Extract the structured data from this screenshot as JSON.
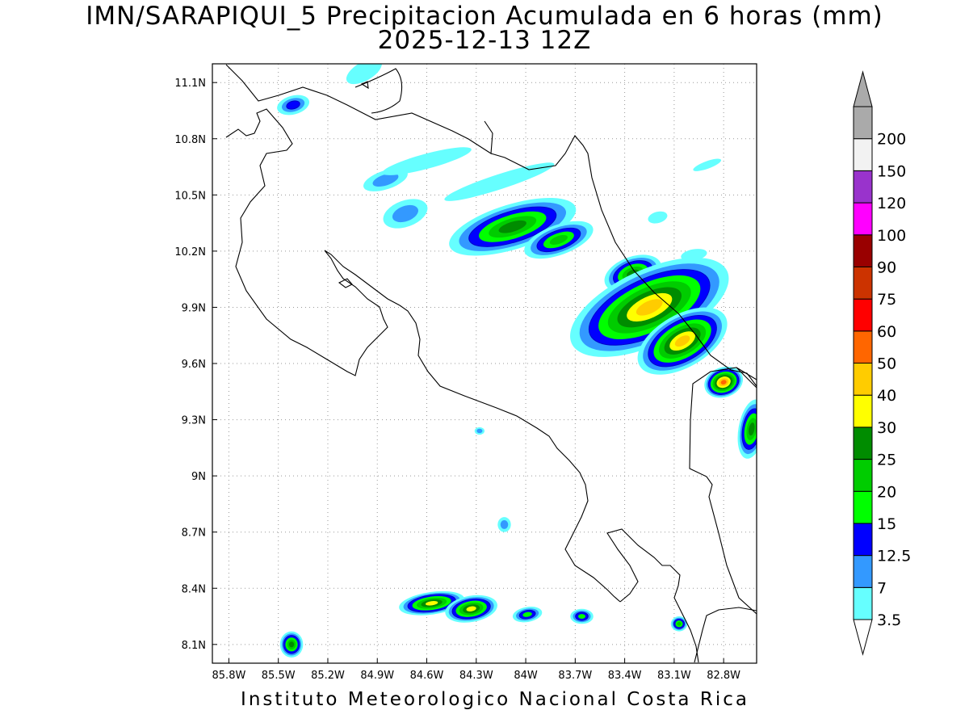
{
  "title": {
    "line1": "IMN/SARAPIQUI_5 Precipitacion Acumulada en 6 horas (mm)",
    "line2": "2025-12-13 12Z"
  },
  "credit": "Instituto Meteorologico Nacional Costa Rica",
  "map": {
    "lon_range": [
      -85.9,
      -82.6
    ],
    "lat_range": [
      8.0,
      11.2
    ],
    "lon_ticks": [
      {
        "value": -85.8,
        "label": "85.8W"
      },
      {
        "value": -85.5,
        "label": "85.5W"
      },
      {
        "value": -85.2,
        "label": "85.2W"
      },
      {
        "value": -84.9,
        "label": "84.9W"
      },
      {
        "value": -84.6,
        "label": "84.6W"
      },
      {
        "value": -84.3,
        "label": "84.3W"
      },
      {
        "value": -84.0,
        "label": "84W"
      },
      {
        "value": -83.7,
        "label": "83.7W"
      },
      {
        "value": -83.4,
        "label": "83.4W"
      },
      {
        "value": -83.1,
        "label": "83.1W"
      },
      {
        "value": -82.8,
        "label": "82.8W"
      }
    ],
    "lat_ticks": [
      {
        "value": 11.1,
        "label": "11.1N"
      },
      {
        "value": 10.8,
        "label": "10.8N"
      },
      {
        "value": 10.5,
        "label": "10.5N"
      },
      {
        "value": 10.2,
        "label": "10.2N"
      },
      {
        "value": 9.9,
        "label": "9.9N"
      },
      {
        "value": 9.6,
        "label": "9.6N"
      },
      {
        "value": 9.3,
        "label": "9.3N"
      },
      {
        "value": 9.0,
        "label": "9N"
      },
      {
        "value": 8.7,
        "label": "8.7N"
      },
      {
        "value": 8.4,
        "label": "8.4N"
      },
      {
        "value": 8.1,
        "label": "8.1N"
      }
    ],
    "grid": "dotted",
    "projection": "lat-lon"
  },
  "colorbar": {
    "orientation": "vertical",
    "placement": "right",
    "levels": [
      {
        "label": "3.5",
        "color": "#66ffff"
      },
      {
        "label": "7",
        "color": "#3399ff"
      },
      {
        "label": "12.5",
        "color": "#0000ff"
      },
      {
        "label": "15",
        "color": "#00ff00"
      },
      {
        "label": "20",
        "color": "#00cc00"
      },
      {
        "label": "25",
        "color": "#008c00"
      },
      {
        "label": "30",
        "color": "#ffff00"
      },
      {
        "label": "40",
        "color": "#ffcc00"
      },
      {
        "label": "50",
        "color": "#ff6600"
      },
      {
        "label": "60",
        "color": "#ff0000"
      },
      {
        "label": "75",
        "color": "#cc3300"
      },
      {
        "label": "90",
        "color": "#990000"
      },
      {
        "label": "100",
        "color": "#ff00ff"
      },
      {
        "label": "120",
        "color": "#9933cc"
      },
      {
        "label": "150",
        "color": "#f2f2f2"
      },
      {
        "label": "200",
        "color": "#aaaaaa"
      }
    ],
    "bottom_extension_color": "#ffffff",
    "top_extension_color": "#aaaaaa"
  },
  "precipitation_cells": [
    {
      "lon": -84.85,
      "lat": 10.58,
      "rx": 0.14,
      "ry": 0.05,
      "rot": -18,
      "max_mm": 7
    },
    {
      "lon": -84.6,
      "lat": 10.68,
      "rx": 0.28,
      "ry": 0.04,
      "rot": -15,
      "max_mm": 3.5
    },
    {
      "lon": -84.16,
      "lat": 10.57,
      "rx": 0.35,
      "ry": 0.04,
      "rot": -18,
      "max_mm": 3.5
    },
    {
      "lon": -85.41,
      "lat": 10.98,
      "rx": 0.1,
      "ry": 0.05,
      "rot": -15,
      "max_mm": 12.5
    },
    {
      "lon": -84.98,
      "lat": 11.16,
      "rx": 0.12,
      "ry": 0.05,
      "rot": -30,
      "max_mm": 3.5
    },
    {
      "lon": -84.73,
      "lat": 10.4,
      "rx": 0.14,
      "ry": 0.07,
      "rot": -20,
      "max_mm": 7
    },
    {
      "lon": -84.08,
      "lat": 10.33,
      "rx": 0.4,
      "ry": 0.12,
      "rot": -17,
      "max_mm": 25
    },
    {
      "lon": -83.8,
      "lat": 10.26,
      "rx": 0.22,
      "ry": 0.08,
      "rot": -20,
      "max_mm": 20
    },
    {
      "lon": -83.35,
      "lat": 10.08,
      "rx": 0.18,
      "ry": 0.09,
      "rot": -20,
      "max_mm": 25
    },
    {
      "lon": -83.25,
      "lat": 9.9,
      "rx": 0.52,
      "ry": 0.2,
      "rot": -25,
      "max_mm": 40
    },
    {
      "lon": -83.05,
      "lat": 9.72,
      "rx": 0.3,
      "ry": 0.14,
      "rot": -30,
      "max_mm": 40
    },
    {
      "lon": -82.8,
      "lat": 9.5,
      "rx": 0.12,
      "ry": 0.08,
      "rot": -20,
      "max_mm": 50
    },
    {
      "lon": -82.63,
      "lat": 9.25,
      "rx": 0.08,
      "ry": 0.16,
      "rot": 10,
      "max_mm": 25
    },
    {
      "lon": -82.98,
      "lat": 10.18,
      "rx": 0.08,
      "ry": 0.03,
      "rot": -10,
      "max_mm": 3.5
    },
    {
      "lon": -83.2,
      "lat": 10.38,
      "rx": 0.06,
      "ry": 0.03,
      "rot": -15,
      "max_mm": 3.5
    },
    {
      "lon": -82.9,
      "lat": 10.66,
      "rx": 0.09,
      "ry": 0.02,
      "rot": -20,
      "max_mm": 3.5
    },
    {
      "lon": -84.57,
      "lat": 8.32,
      "rx": 0.2,
      "ry": 0.06,
      "rot": -8,
      "max_mm": 30
    },
    {
      "lon": -84.33,
      "lat": 8.29,
      "rx": 0.16,
      "ry": 0.07,
      "rot": -10,
      "max_mm": 30
    },
    {
      "lon": -83.99,
      "lat": 8.26,
      "rx": 0.09,
      "ry": 0.04,
      "rot": -10,
      "max_mm": 15
    },
    {
      "lon": -83.66,
      "lat": 8.25,
      "rx": 0.07,
      "ry": 0.04,
      "rot": 0,
      "max_mm": 15
    },
    {
      "lon": -83.07,
      "lat": 8.21,
      "rx": 0.05,
      "ry": 0.04,
      "rot": 0,
      "max_mm": 20
    },
    {
      "lon": -85.42,
      "lat": 8.1,
      "rx": 0.07,
      "ry": 0.07,
      "rot": 0,
      "max_mm": 25
    },
    {
      "lon": -84.13,
      "lat": 8.74,
      "rx": 0.04,
      "ry": 0.04,
      "rot": 0,
      "max_mm": 7
    },
    {
      "lon": -84.28,
      "lat": 9.24,
      "rx": 0.03,
      "ry": 0.02,
      "rot": 0,
      "max_mm": 7
    }
  ]
}
